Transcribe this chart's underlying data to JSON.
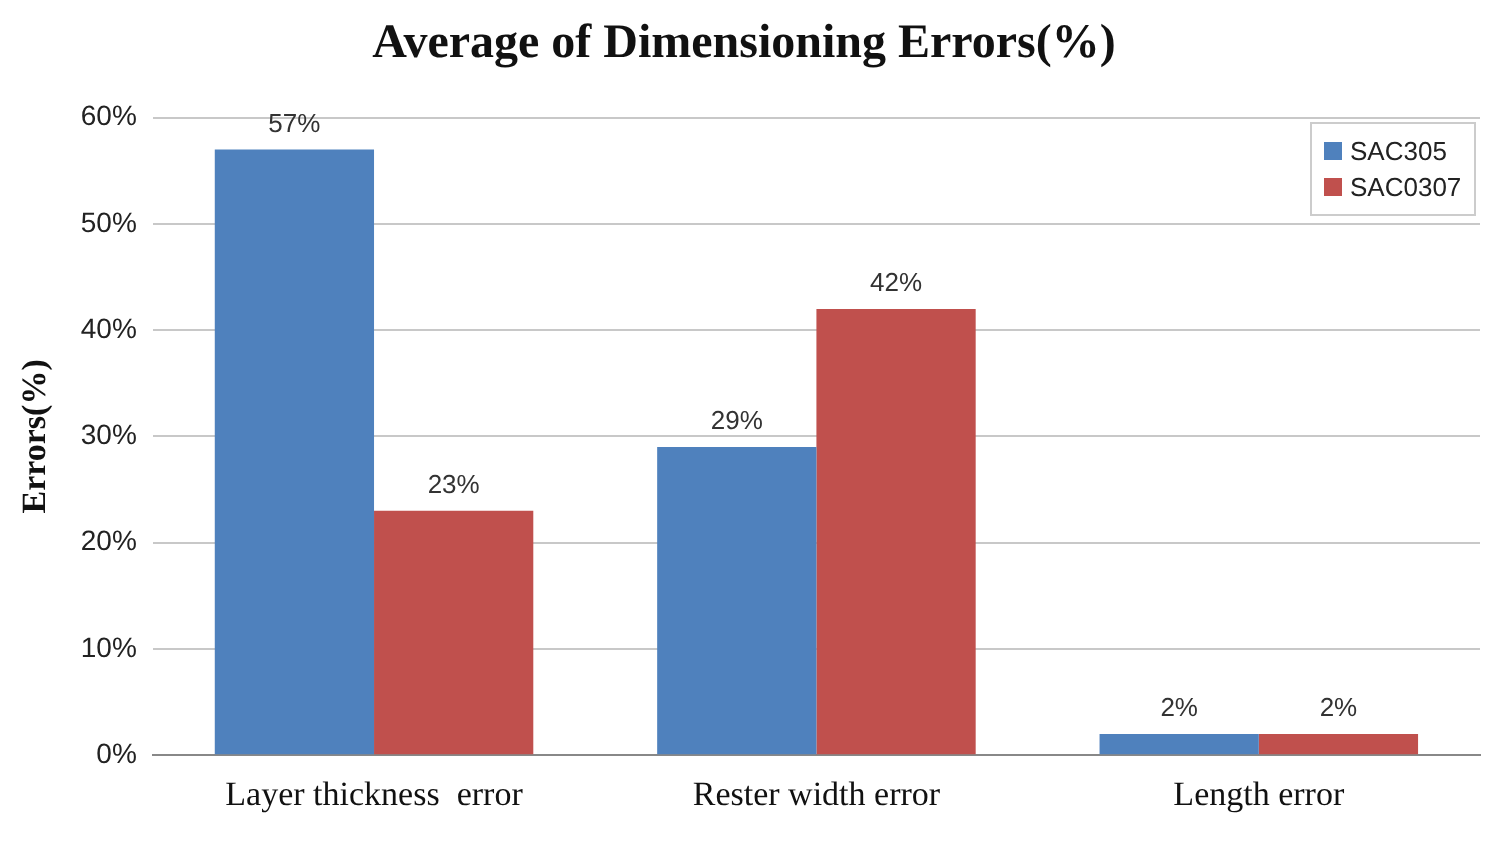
{
  "chart_data": {
    "type": "bar",
    "title": "Average of Dimensioning Errors(%)",
    "ylabel": "Errors(%)",
    "categories": [
      "Layer thickness  error",
      "Rester width error",
      "Length error"
    ],
    "series": [
      {
        "name": "SAC305",
        "color": "#4f81bd",
        "values": [
          57,
          29,
          2
        ],
        "value_labels": [
          "57%",
          "29%",
          "2%"
        ]
      },
      {
        "name": "SAC0307",
        "color": "#c0504d",
        "values": [
          23,
          42,
          2
        ],
        "value_labels": [
          "23%",
          "42%",
          "2%"
        ]
      }
    ],
    "ylim": [
      0,
      60
    ],
    "yticks": [
      {
        "value": 0,
        "label": "0%"
      },
      {
        "value": 10,
        "label": "10%"
      },
      {
        "value": 20,
        "label": "20%"
      },
      {
        "value": 30,
        "label": "30%"
      },
      {
        "value": 40,
        "label": "40%"
      },
      {
        "value": 50,
        "label": "50%"
      },
      {
        "value": 60,
        "label": "60%"
      }
    ],
    "grid": "y",
    "legend": "top right"
  }
}
